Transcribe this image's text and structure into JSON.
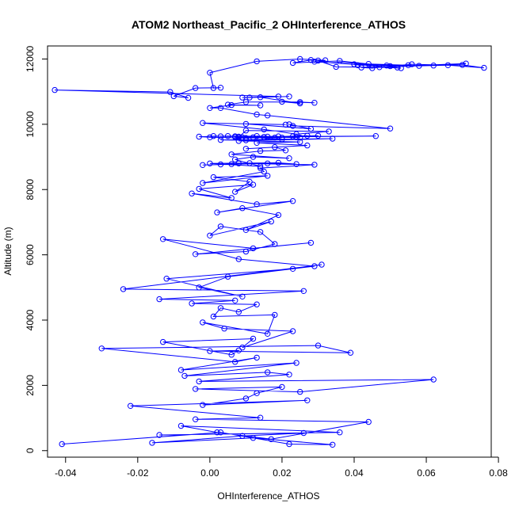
{
  "chart_data": {
    "type": "line",
    "title": "ATOM2 Northeast_Pacific_2 OHInterference_ATHOS",
    "xlabel": "OHInterference_ATHOS",
    "ylabel": "Altitude (m)",
    "xlim": [
      -0.045,
      0.078
    ],
    "ylim": [
      -200,
      12400
    ],
    "xticks": [
      -0.04,
      -0.02,
      0.0,
      0.02,
      0.04,
      0.06,
      0.08
    ],
    "xtick_labels": [
      "-0.04",
      "-0.02",
      "0.00",
      "0.02",
      "0.04",
      "0.06",
      "0.08"
    ],
    "yticks": [
      0,
      2000,
      4000,
      6000,
      8000,
      10000,
      12000
    ],
    "ytick_labels": [
      "0",
      "2000",
      "4000",
      "6000",
      "8000",
      "10000",
      "12000"
    ],
    "color": "#0000ff",
    "marker": "open-circle",
    "grid": false,
    "series": [
      {
        "x": [
          -0.041,
          0.003,
          0.022,
          0.034,
          0.012,
          -0.016,
          0.009,
          0.026,
          -0.014,
          0.036,
          -0.008,
          0.002,
          0.017,
          0.044,
          -0.004,
          0.014,
          -0.022,
          0.027,
          -0.002,
          0.01,
          0.013,
          0.02,
          -0.004,
          0.025,
          0.062,
          -0.003,
          0.022,
          0.016,
          -0.007,
          0.024,
          -0.008,
          0.013,
          0.007,
          -0.03,
          0.03,
          0.039,
          0.0,
          0.008,
          0.006,
          -0.013,
          0.012,
          0.009,
          0.023,
          0.004,
          -0.002,
          0.016,
          0.018,
          0.001,
          0.003,
          0.008,
          0.013,
          -0.005,
          0.007,
          -0.014,
          0.026,
          -0.024,
          0.031,
          0.023,
          -0.012,
          0.009,
          -0.003,
          0.005,
          0.029,
          0.008,
          -0.013,
          0.012,
          0.028,
          -0.004,
          0.01,
          0.018,
          0.014,
          0.003,
          0.0,
          0.017,
          0.01,
          0.019,
          0.009,
          0.002,
          0.023,
          0.013,
          -0.005,
          0.006,
          -0.003,
          0.012,
          0.007,
          0.011,
          0.001,
          0.016,
          -0.002,
          0.015,
          0.014,
          0.029,
          0.008,
          0.006,
          -0.002,
          0.016,
          0.003,
          0.011,
          0.024,
          0.019,
          0.0,
          0.014,
          0.007,
          0.012,
          0.022,
          0.006,
          0.014,
          0.021,
          0.018,
          0.01,
          0.027,
          0.013,
          0.025,
          0.008,
          0.034,
          0.003,
          0.01,
          0.02,
          0.012,
          0.007,
          0.018,
          0.027,
          0.015,
          0.003,
          0.024,
          0.013,
          0.02,
          0.008,
          0.007,
          0.023,
          0.01,
          0.0,
          -0.003,
          0.005,
          0.019,
          0.009,
          0.03,
          0.015,
          0.001,
          0.025,
          0.016,
          0.046,
          0.008,
          0.01,
          0.033,
          0.024,
          0.015,
          -0.002,
          0.021,
          0.01,
          0.028,
          0.022,
          0.023,
          0.05,
          0.016,
          0.013,
          0.003,
          0.0,
          0.006,
          0.014,
          0.005,
          0.01,
          0.025,
          0.029,
          0.02,
          0.025,
          0.014,
          0.022,
          0.011,
          0.009,
          0.019,
          -0.043,
          -0.011,
          -0.006,
          -0.01,
          -0.004,
          0.003,
          0.001,
          0.0,
          0.013,
          0.025,
          0.032,
          0.028,
          0.023,
          0.036,
          0.044,
          0.055,
          0.041,
          0.062,
          0.071,
          0.042,
          0.045,
          0.05,
          0.056,
          0.066,
          0.076,
          0.07,
          0.058,
          0.047,
          0.053,
          0.04,
          0.049,
          0.03,
          0.035,
          0.052,
          0.029
        ],
        "y": [
          200,
          560,
          200,
          180,
          390,
          240,
          450,
          540,
          480,
          560,
          760,
          560,
          350,
          880,
          960,
          1010,
          1370,
          1540,
          1400,
          1600,
          1760,
          1950,
          1890,
          1800,
          2180,
          2120,
          2330,
          2400,
          2290,
          2690,
          2470,
          2850,
          2720,
          3130,
          3220,
          3000,
          3050,
          3070,
          2940,
          3330,
          3430,
          3160,
          3660,
          3740,
          3930,
          3580,
          4160,
          4110,
          4370,
          4250,
          4480,
          4510,
          4600,
          4640,
          4890,
          4950,
          5700,
          5570,
          5270,
          4720,
          5000,
          5330,
          5650,
          5870,
          6480,
          6200,
          6370,
          6020,
          6100,
          6330,
          6700,
          6870,
          6590,
          7020,
          6760,
          7220,
          7430,
          7300,
          7650,
          7550,
          7880,
          7740,
          8020,
          8150,
          7930,
          8240,
          8380,
          8420,
          8200,
          8550,
          8660,
          8760,
          8800,
          8780,
          8750,
          8800,
          8770,
          8810,
          8780,
          8820,
          8800,
          8710,
          8920,
          9000,
          8960,
          9080,
          9180,
          9200,
          9300,
          9250,
          9350,
          9430,
          9460,
          9490,
          9560,
          9520,
          9510,
          9540,
          9600,
          9630,
          9590,
          9650,
          9610,
          9630,
          9600,
          9640,
          9590,
          9620,
          9610,
          9630,
          9580,
          9600,
          9620,
          9640,
          9630,
          9600,
          9650,
          9610,
          9640,
          9590,
          9620,
          9640,
          9600,
          9810,
          9780,
          9700,
          9840,
          10040,
          9990,
          10010,
          9860,
          10000,
          9950,
          9870,
          10270,
          10300,
          10500,
          10500,
          10590,
          10580,
          10600,
          10680,
          10680,
          10660,
          10690,
          10640,
          10830,
          10850,
          10820,
          10820,
          10850,
          11050,
          10990,
          10810,
          10860,
          11110,
          11120,
          11110,
          11580,
          11930,
          12000,
          11960,
          11970,
          11880,
          11940,
          11850,
          11810,
          11810,
          11800,
          11860,
          11740,
          11720,
          11780,
          11840,
          11810,
          11730,
          11820,
          11790,
          11750,
          11720,
          11840,
          11800,
          11950,
          11760,
          11740,
          11920
        ]
      }
    ]
  }
}
